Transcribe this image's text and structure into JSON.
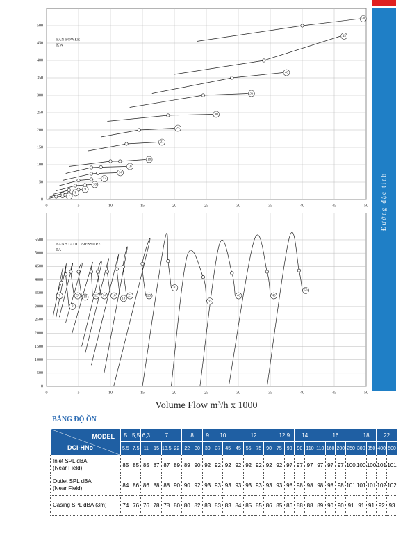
{
  "side_tab": "Đường đặc tính",
  "chart_data": [
    {
      "type": "line",
      "curve": "straight",
      "annotation": [
        "FAN POWER",
        "KW"
      ],
      "xlim": [
        0,
        50
      ],
      "ylim": [
        0,
        550
      ],
      "xticks": [
        0,
        5,
        10,
        15,
        20,
        25,
        30,
        35,
        40,
        45,
        50
      ],
      "yticks": [
        0,
        50,
        100,
        150,
        200,
        250,
        300,
        350,
        400,
        450,
        500
      ],
      "grid": true,
      "color": "#222222",
      "series": [
        {
          "name": "50",
          "x": [
            23.5,
            40,
            49
          ],
          "values": [
            455,
            500,
            520
          ]
        },
        {
          "name": "45",
          "x": [
            20,
            34,
            46
          ],
          "values": [
            360,
            400,
            470
          ]
        },
        {
          "name": "40",
          "x": [
            16.5,
            29,
            37
          ],
          "values": [
            305,
            350,
            365
          ]
        },
        {
          "name": "35",
          "x": [
            13,
            24.5,
            31.5
          ],
          "values": [
            265,
            300,
            305
          ]
        },
        {
          "name": "30",
          "x": [
            9.5,
            19,
            26
          ],
          "values": [
            225,
            242,
            245
          ]
        },
        {
          "name": "25",
          "x": [
            8.5,
            14.5,
            20
          ],
          "values": [
            180,
            200,
            205
          ]
        },
        {
          "name": "21",
          "x": [
            6.5,
            12.5,
            17.5
          ],
          "values": [
            140,
            160,
            165
          ]
        },
        {
          "name": "18",
          "x": [
            3.5,
            10,
            11.5,
            15.5
          ],
          "values": [
            95,
            110,
            110,
            115
          ]
        },
        {
          "name": "16",
          "x": [
            3,
            7,
            8.5,
            12.5
          ],
          "values": [
            75,
            92,
            93,
            95
          ]
        },
        {
          "name": "14",
          "x": [
            2.5,
            7,
            8,
            11
          ],
          "values": [
            55,
            74,
            75,
            77
          ]
        },
        {
          "name": "12",
          "x": [
            2,
            5,
            7,
            8.5
          ],
          "values": [
            40,
            55,
            58,
            60
          ]
        },
        {
          "name": "10",
          "x": [
            1.5,
            4.5,
            6,
            7
          ],
          "values": [
            25,
            40,
            42,
            43
          ]
        },
        {
          "name": "9",
          "x": [
            1,
            3.5,
            5,
            5.5
          ],
          "values": [
            15,
            27,
            28,
            29
          ]
        },
        {
          "name": "8",
          "x": [
            0.5,
            2.5,
            3.5,
            4
          ],
          "values": [
            8,
            17,
            18,
            19
          ]
        },
        {
          "name": "7",
          "x": [
            0.3,
            1.5,
            2.5,
            3
          ],
          "values": [
            3,
            8,
            9,
            9.5
          ]
        }
      ]
    },
    {
      "type": "line",
      "curve": "smooth",
      "annotation": [
        "FAN STATIC PRESSURE",
        "PA"
      ],
      "x_label": "Volume Flow m³/h x 1000",
      "xlim": [
        0,
        50
      ],
      "ylim": [
        0,
        6500
      ],
      "xticks": [
        0,
        5,
        10,
        15,
        20,
        25,
        30,
        35,
        40,
        45,
        50
      ],
      "yticks": [
        0,
        500,
        1000,
        1500,
        2000,
        2500,
        3000,
        3500,
        4000,
        4500,
        5000,
        5500
      ],
      "grid": true,
      "color": "#222222",
      "series": [
        {
          "name": "50",
          "x": [
            34.5,
            38,
            39.5,
            40
          ],
          "values": [
            0,
            5600,
            4350,
            3600
          ]
        },
        {
          "name": "45",
          "x": [
            28.5,
            32.5,
            34.5,
            35
          ],
          "values": [
            0,
            5500,
            4300,
            3400
          ]
        },
        {
          "name": "40",
          "x": [
            24,
            27,
            29,
            29.5
          ],
          "values": [
            0,
            5300,
            4250,
            3400
          ]
        },
        {
          "name": "35",
          "x": [
            19.5,
            22,
            24.5,
            25
          ],
          "values": [
            0,
            4900,
            4100,
            3200
          ]
        },
        {
          "name": "30",
          "x": [
            15,
            18.5,
            19,
            19.5
          ],
          "values": [
            0,
            5500,
            4700,
            3700
          ]
        },
        {
          "name": "25",
          "x": [
            10.5,
            16,
            15,
            15.5
          ],
          "values": [
            0,
            5300,
            4600,
            3400
          ]
        },
        {
          "name": "21",
          "x": [
            9,
            12.5,
            12,
            12.5
          ],
          "values": [
            500,
            5000,
            4500,
            3400
          ]
        },
        {
          "name": "18",
          "x": [
            7,
            11,
            11,
            11.5
          ],
          "values": [
            800,
            4700,
            4400,
            3300
          ]
        },
        {
          "name": "16",
          "x": [
            6,
            9.5,
            9.5,
            10
          ],
          "values": [
            1200,
            4600,
            4300,
            3400
          ]
        },
        {
          "name": "14",
          "x": [
            5.5,
            8.5,
            8,
            8.5
          ],
          "values": [
            1500,
            4500,
            4300,
            3400
          ]
        },
        {
          "name": "12",
          "x": [
            4,
            7,
            7,
            7.2
          ],
          "values": [
            2000,
            4500,
            4300,
            3400
          ]
        },
        {
          "name": "10",
          "x": [
            3,
            5.5,
            5,
            5.5
          ],
          "values": [
            2400,
            4500,
            4300,
            3350
          ]
        },
        {
          "name": "9",
          "x": [
            2,
            4,
            3.8,
            4.3
          ],
          "values": [
            2600,
            4500,
            4300,
            3400
          ]
        },
        {
          "name": "8",
          "x": [
            1.5,
            3,
            3,
            3.5
          ],
          "values": [
            2600,
            4500,
            4200,
            3000
          ]
        },
        {
          "name": "7",
          "x": [
            1,
            2.5,
            2.3,
            1.5
          ],
          "values": [
            2600,
            4400,
            3900,
            3400
          ]
        }
      ]
    }
  ],
  "table": {
    "title": "BẢNG ĐỘ ỒN",
    "model_label": "MODEL",
    "motor_label": "DCI-HNo",
    "models": [
      "5",
      "5,5",
      "6,3",
      "7",
      null,
      null,
      "8",
      null,
      "9",
      "10",
      null,
      "12",
      null,
      null,
      null,
      "12,9",
      null,
      "14",
      null,
      "16",
      null,
      null,
      null,
      "18",
      null,
      "22",
      null
    ],
    "motor": [
      "5,5",
      "7,5",
      11,
      15,
      "18,5",
      22,
      22,
      30,
      30,
      37,
      45,
      45,
      55,
      75,
      90,
      75,
      90,
      90,
      110,
      110,
      160,
      200,
      250,
      300,
      350,
      400,
      500
    ],
    "rows": [
      {
        "label": [
          "Inlet SPL dBA",
          "(Near Field)"
        ],
        "values": [
          85,
          85,
          85,
          87,
          87,
          89,
          89,
          90,
          92,
          92,
          92,
          92,
          92,
          92,
          92,
          92,
          97,
          97,
          97,
          97,
          97,
          97,
          100,
          100,
          100,
          101,
          101
        ]
      },
      {
        "label": [
          "Outlet SPL dBA",
          "(Near Field)"
        ],
        "values": [
          84,
          86,
          86,
          88,
          88,
          90,
          90,
          92,
          93,
          93,
          93,
          93,
          93,
          93,
          93,
          93,
          98,
          98,
          98,
          98,
          98,
          98,
          101,
          101,
          101,
          102,
          102
        ]
      },
      {
        "label": [
          "Casing SPL dBA (3m)"
        ],
        "values": [
          74,
          76,
          76,
          78,
          78,
          80,
          80,
          82,
          83,
          83,
          83,
          84,
          85,
          85,
          86,
          85,
          86,
          88,
          88,
          89,
          90,
          90,
          91,
          91,
          91,
          92,
          93
        ]
      }
    ]
  }
}
